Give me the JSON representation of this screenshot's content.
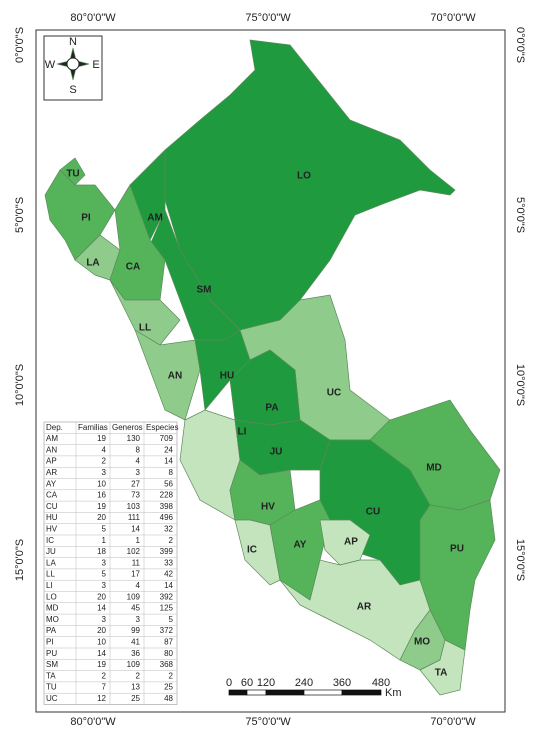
{
  "coordinates": {
    "top": [
      "80°0'0\"W",
      "75°0'0\"W",
      "70°0'0\"W"
    ],
    "bottom": [
      "80°0'0\"W",
      "75°0'0\"W",
      "70°0'0\"W"
    ],
    "left": [
      "0°0'0\"S",
      "5°0'0\"S",
      "10°0'0\"S",
      "15°0'0\"S"
    ],
    "right": [
      "0°0'0\"S",
      "5°0'0\"S",
      "10°0'0\"S",
      "15°0'0\"S"
    ]
  },
  "compass": {
    "n": "N",
    "s": "S",
    "e": "E",
    "w": "W"
  },
  "departments": [
    "LO",
    "AM",
    "TU",
    "PI",
    "LA",
    "CA",
    "SM",
    "LL",
    "AN",
    "HU",
    "UC",
    "PA",
    "LI",
    "JU",
    "MD",
    "HV",
    "CU",
    "IC",
    "AY",
    "AP",
    "PU",
    "AR",
    "MO",
    "TA"
  ],
  "table": {
    "header": [
      "Dep.",
      "Familias",
      "Generos",
      "Especies"
    ],
    "rows": [
      [
        "AM",
        19,
        130,
        709
      ],
      [
        "AN",
        4,
        8,
        24
      ],
      [
        "AP",
        2,
        4,
        14
      ],
      [
        "AR",
        3,
        3,
        8
      ],
      [
        "AY",
        10,
        27,
        56
      ],
      [
        "CA",
        16,
        73,
        228
      ],
      [
        "CU",
        19,
        103,
        398
      ],
      [
        "HU",
        20,
        111,
        496
      ],
      [
        "HV",
        5,
        14,
        32
      ],
      [
        "IC",
        1,
        1,
        2
      ],
      [
        "JU",
        18,
        102,
        399
      ],
      [
        "LA",
        3,
        11,
        33
      ],
      [
        "LL",
        5,
        17,
        42
      ],
      [
        "LI",
        3,
        4,
        14
      ],
      [
        "LO",
        20,
        109,
        392
      ],
      [
        "MD",
        14,
        45,
        125
      ],
      [
        "MO",
        3,
        3,
        5
      ],
      [
        "PA",
        20,
        99,
        372
      ],
      [
        "PI",
        10,
        41,
        87
      ],
      [
        "PU",
        14,
        36,
        80
      ],
      [
        "SM",
        19,
        109,
        368
      ],
      [
        "TA",
        2,
        2,
        2
      ],
      [
        "TU",
        7,
        13,
        25
      ],
      [
        "UC",
        12,
        25,
        48
      ]
    ]
  },
  "scale": {
    "ticks": [
      "0",
      "60",
      "120",
      "240",
      "360",
      "480"
    ],
    "unit": "Km"
  }
}
